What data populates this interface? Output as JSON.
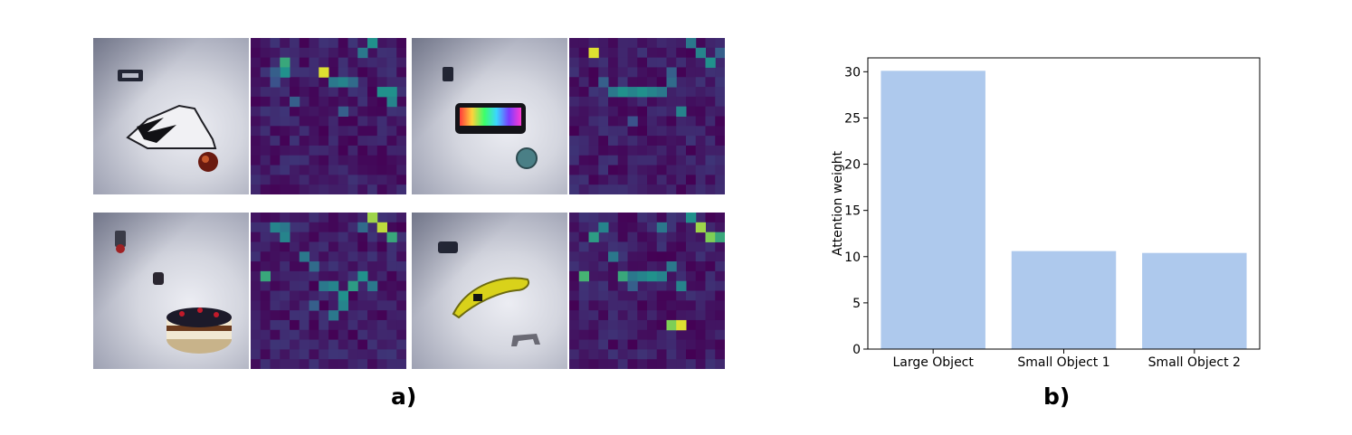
{
  "figure": {
    "panel_a_label": "a)",
    "panel_b_label": "b)"
  },
  "panel_a": {
    "scenes": [
      {
        "objects": [
          "shoe",
          "apple",
          "small box"
        ],
        "heat_cells": [
          [
            3,
            2,
            0.6
          ],
          [
            3,
            3,
            0.5
          ],
          [
            2,
            3,
            0.3
          ],
          [
            7,
            3,
            0.95
          ],
          [
            8,
            4,
            0.4
          ],
          [
            9,
            4,
            0.45
          ],
          [
            10,
            4,
            0.35
          ],
          [
            13,
            5,
            0.5
          ],
          [
            14,
            5,
            0.5
          ],
          [
            14,
            6,
            0.45
          ],
          [
            11,
            1,
            0.4
          ],
          [
            12,
            0,
            0.5
          ],
          [
            4,
            6,
            0.3
          ],
          [
            9,
            7,
            0.3
          ],
          [
            2,
            4,
            0.25
          ]
        ]
      },
      {
        "objects": [
          "keyboard",
          "bowl",
          "small box"
        ],
        "heat_cells": [
          [
            2,
            1,
            0.95
          ],
          [
            3,
            4,
            0.3
          ],
          [
            4,
            5,
            0.4
          ],
          [
            5,
            5,
            0.5
          ],
          [
            6,
            5,
            0.45
          ],
          [
            7,
            5,
            0.5
          ],
          [
            8,
            5,
            0.45
          ],
          [
            9,
            5,
            0.4
          ],
          [
            10,
            4,
            0.35
          ],
          [
            12,
            0,
            0.4
          ],
          [
            13,
            1,
            0.45
          ],
          [
            14,
            2,
            0.5
          ],
          [
            15,
            1,
            0.3
          ],
          [
            11,
            7,
            0.45
          ],
          [
            6,
            8,
            0.25
          ],
          [
            10,
            3,
            0.3
          ]
        ]
      },
      {
        "objects": [
          "cake",
          "mug",
          "small figure"
        ],
        "heat_cells": [
          [
            2,
            1,
            0.45
          ],
          [
            3,
            1,
            0.4
          ],
          [
            3,
            2,
            0.45
          ],
          [
            1,
            6,
            0.6
          ],
          [
            5,
            4,
            0.4
          ],
          [
            6,
            5,
            0.35
          ],
          [
            7,
            7,
            0.4
          ],
          [
            8,
            7,
            0.45
          ],
          [
            9,
            8,
            0.5
          ],
          [
            10,
            7,
            0.55
          ],
          [
            11,
            6,
            0.5
          ],
          [
            12,
            7,
            0.4
          ],
          [
            9,
            9,
            0.45
          ],
          [
            8,
            10,
            0.4
          ],
          [
            12,
            0,
            0.85
          ],
          [
            13,
            1,
            0.9
          ],
          [
            14,
            2,
            0.6
          ],
          [
            11,
            1,
            0.35
          ],
          [
            6,
            9,
            0.3
          ]
        ]
      },
      {
        "objects": [
          "banana",
          "small animal",
          "small box"
        ],
        "heat_cells": [
          [
            2,
            2,
            0.55
          ],
          [
            3,
            1,
            0.45
          ],
          [
            1,
            6,
            0.65
          ],
          [
            4,
            4,
            0.4
          ],
          [
            5,
            6,
            0.6
          ],
          [
            6,
            6,
            0.4
          ],
          [
            7,
            6,
            0.45
          ],
          [
            8,
            6,
            0.5
          ],
          [
            9,
            6,
            0.45
          ],
          [
            10,
            5,
            0.4
          ],
          [
            13,
            1,
            0.85
          ],
          [
            14,
            2,
            0.8
          ],
          [
            15,
            2,
            0.6
          ],
          [
            12,
            0,
            0.5
          ],
          [
            11,
            7,
            0.45
          ],
          [
            10,
            11,
            0.8
          ],
          [
            11,
            11,
            0.95
          ],
          [
            9,
            1,
            0.4
          ],
          [
            6,
            7,
            0.3
          ]
        ]
      }
    ]
  },
  "chart_data": {
    "type": "bar",
    "categories": [
      "Large Object",
      "Small Object 1",
      "Small Object 2"
    ],
    "values": [
      30.1,
      10.6,
      10.4
    ],
    "ylabel": "Attention weight",
    "xlabel": "",
    "ylim": [
      0,
      31.5
    ],
    "yticks": [
      0,
      5,
      10,
      15,
      20,
      25,
      30
    ],
    "bar_color": "#aec9ed",
    "grid": false,
    "legend": false
  }
}
